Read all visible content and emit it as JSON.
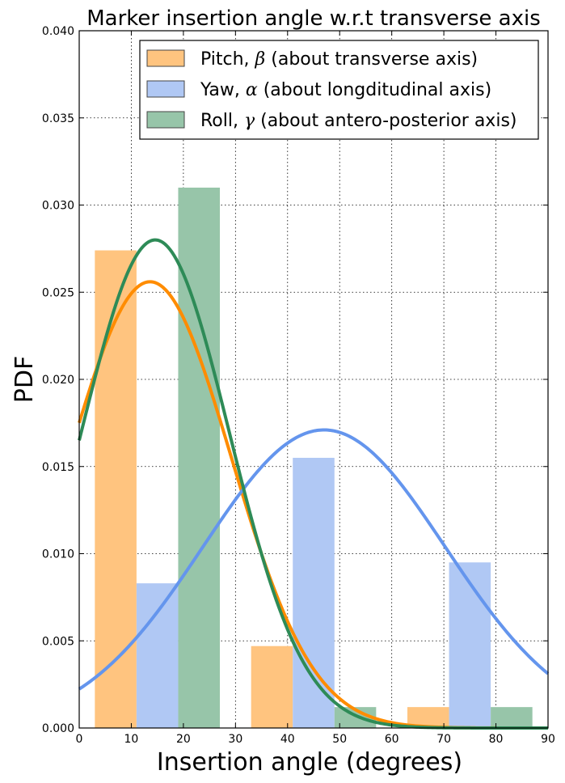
{
  "chart_data": {
    "type": "bar",
    "title": "Marker insertion angle w.r.t transverse axis",
    "xlabel": "Insertion angle (degrees)",
    "ylabel": "PDF",
    "xlim": [
      0,
      90
    ],
    "ylim": [
      0,
      0.04
    ],
    "x_ticks": [
      "0",
      "10",
      "20",
      "30",
      "40",
      "50",
      "60",
      "70",
      "80",
      "90"
    ],
    "y_ticks": [
      "0.000",
      "0.005",
      "0.010",
      "0.015",
      "0.020",
      "0.025",
      "0.030",
      "0.035",
      "0.040"
    ],
    "grid": true,
    "legend_position": "top-right",
    "bin_width": 8,
    "series": [
      {
        "name": "Pitch, β (about transverse axis)",
        "legend_plain": "Pitch, ",
        "legend_symbol": "β",
        "legend_suffix": " (about transverse axis)",
        "bar_color": "#ffc47f",
        "line_color": "#ff8c00",
        "bins": [
          {
            "x": 3,
            "value": 0.0274
          },
          {
            "x": 33,
            "value": 0.0047
          },
          {
            "x": 63,
            "value": 0.0012
          }
        ],
        "fit": {
          "type": "normal",
          "mean": 13.6,
          "sd": 15.6,
          "peak": 0.0256
        }
      },
      {
        "name": "Yaw, α (about longditudinal axis)",
        "legend_plain": "Yaw, ",
        "legend_symbol": "α",
        "legend_suffix": " (about longditudinal axis)",
        "bar_color": "#b0c8f4",
        "line_color": "#6495ed",
        "bins": [
          {
            "x": 11,
            "value": 0.0083
          },
          {
            "x": 41,
            "value": 0.0155
          },
          {
            "x": 71,
            "value": 0.0095
          }
        ],
        "fit": {
          "type": "normal",
          "mean": 47,
          "sd": 23.3,
          "peak": 0.0171
        }
      },
      {
        "name": "Roll, γ (about antero-posterior axis)",
        "legend_plain": "Roll, ",
        "legend_symbol": "γ",
        "legend_suffix": " (about antero-posterior axis)",
        "bar_color": "#97c5a9",
        "line_color": "#2e8b57",
        "bins": [
          {
            "x": 19,
            "value": 0.031
          },
          {
            "x": 49,
            "value": 0.0012
          },
          {
            "x": 79,
            "value": 0.0012
          }
        ],
        "fit": {
          "type": "normal",
          "mean": 14.6,
          "sd": 14.2,
          "peak": 0.028
        }
      }
    ]
  }
}
